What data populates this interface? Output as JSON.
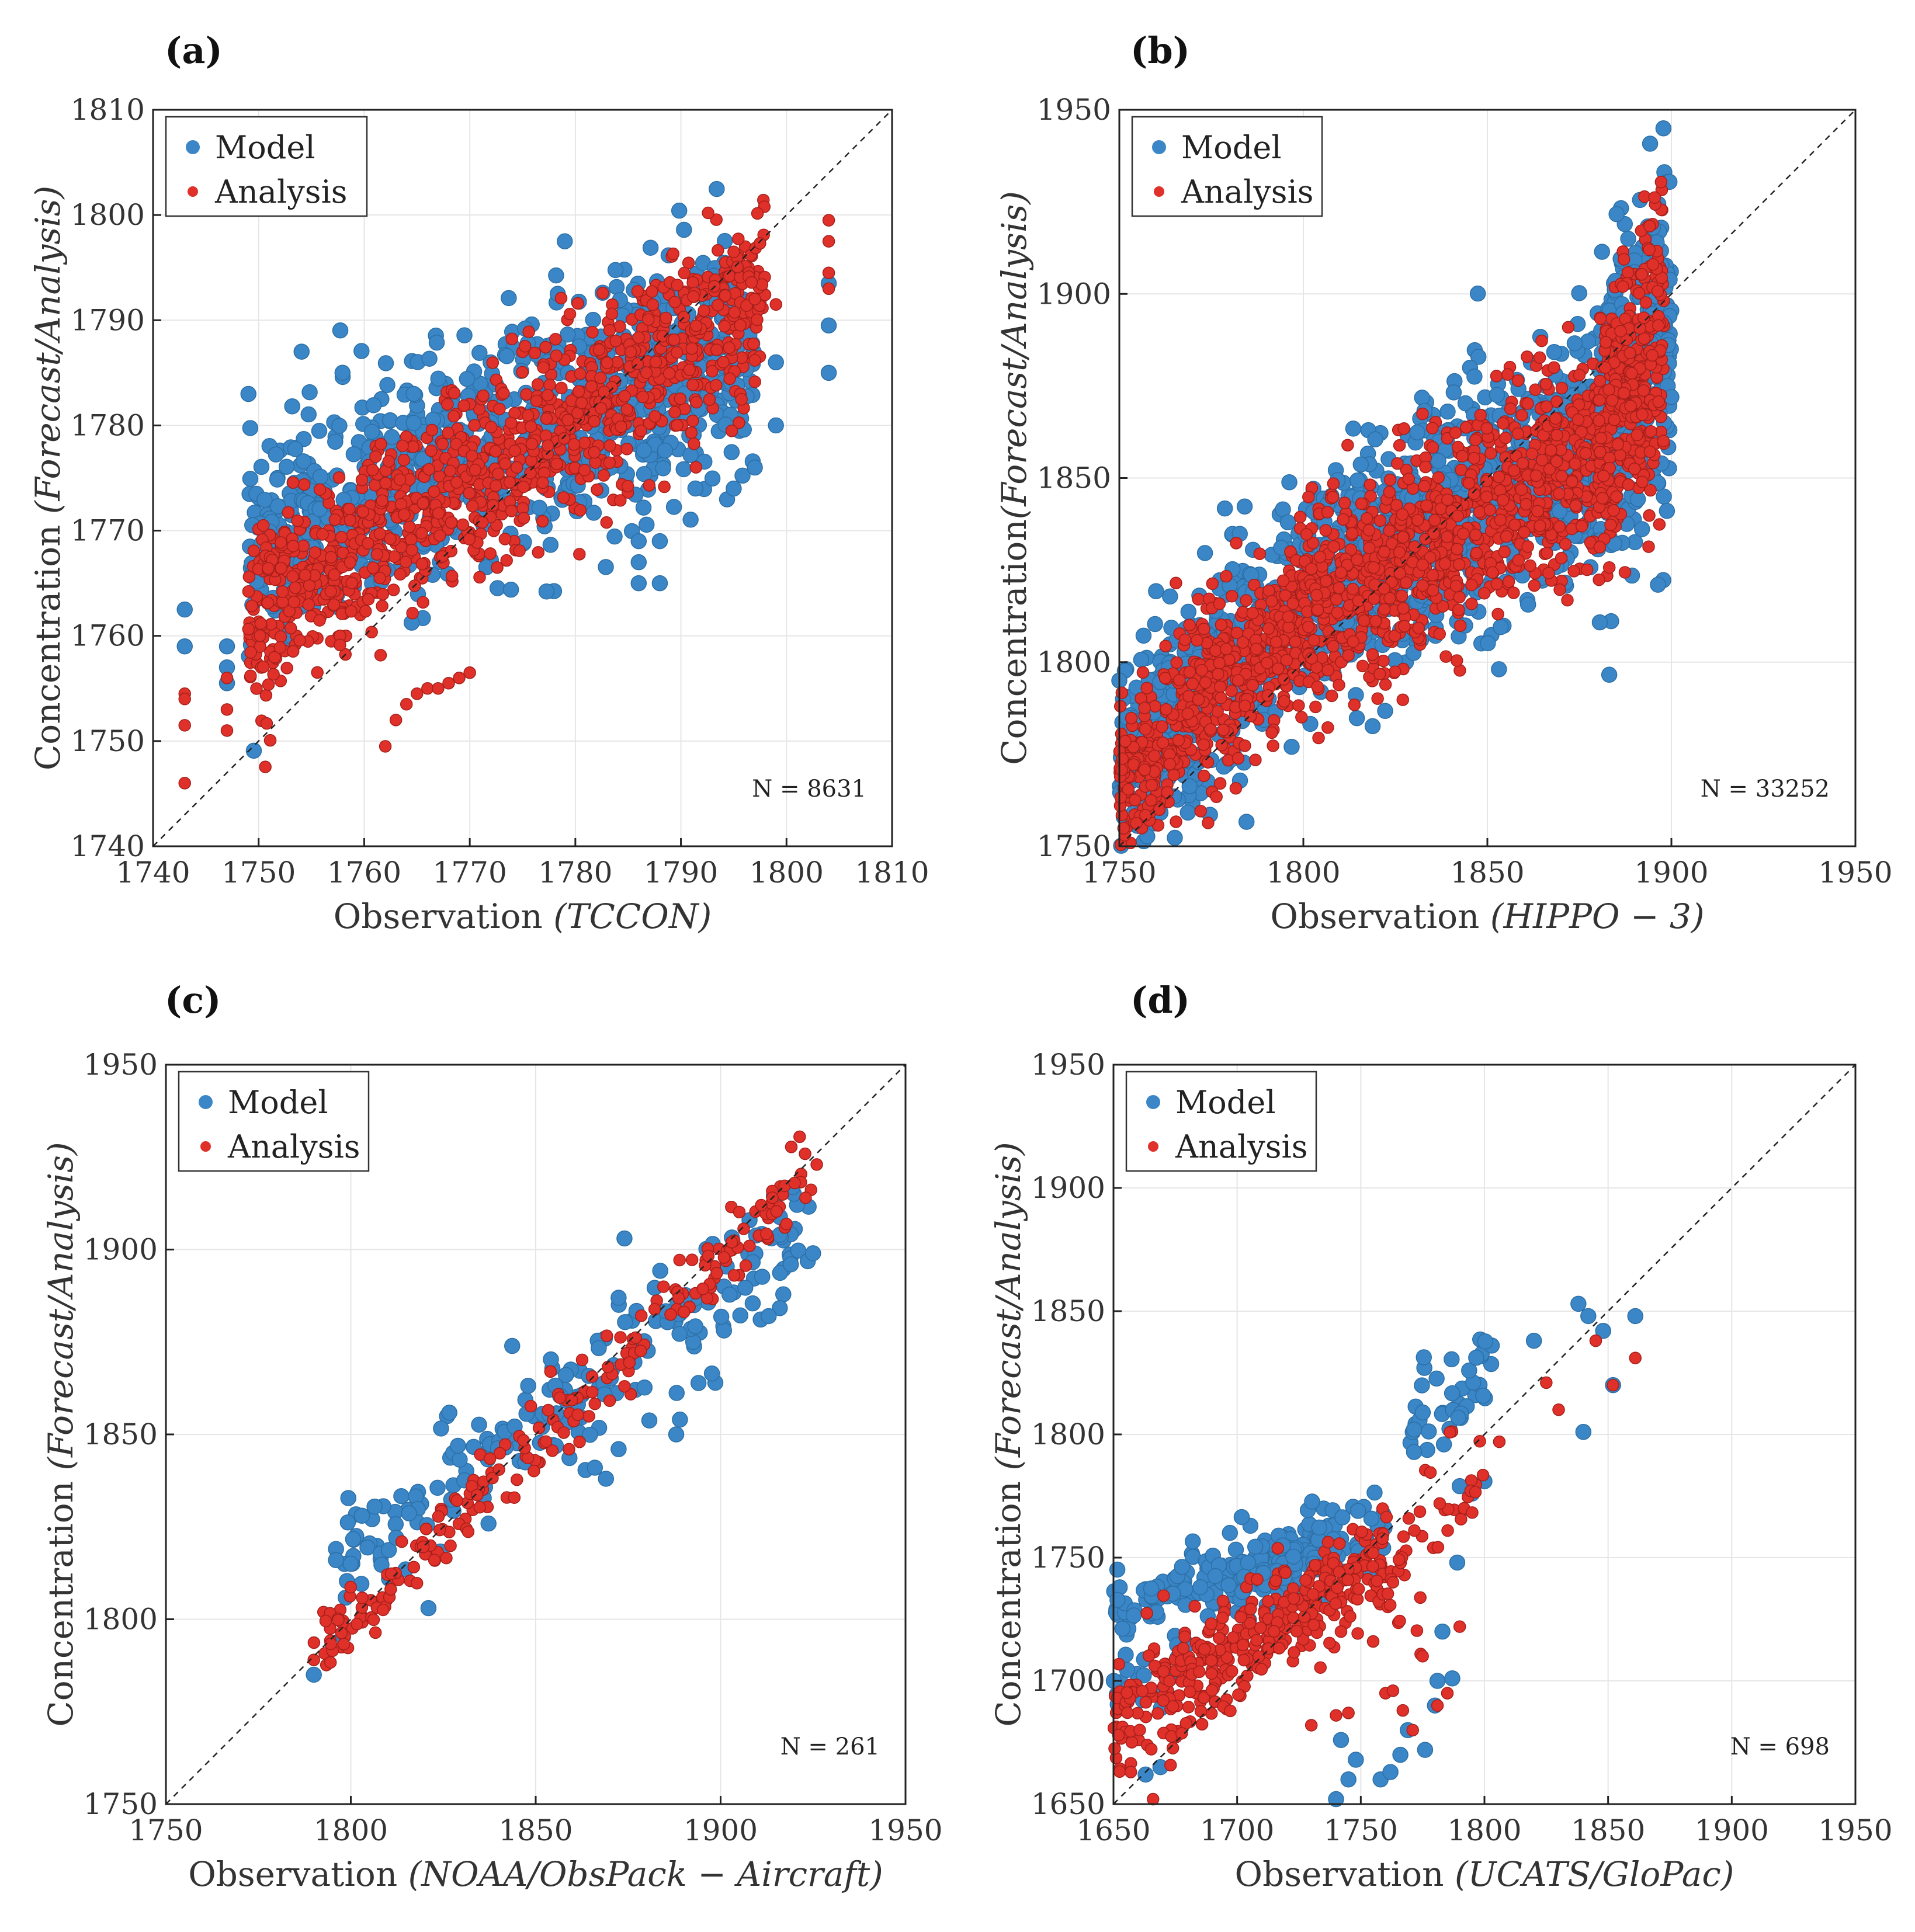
{
  "figure": {
    "model_color": "#3a86c6",
    "analysis_color": "#e0302a"
  },
  "chart_data": [
    {
      "type": "scatter",
      "panel": "(a)",
      "xlabel_prefix": "Observation ",
      "xlabel_italic": "(TCCON)",
      "ylabel_prefix": "Concentration ",
      "ylabel_italic": "(Forecast/Analysis)",
      "xlim": [
        1740,
        1810
      ],
      "ylim": [
        1740,
        1810
      ],
      "xticks": [
        1740,
        1750,
        1760,
        1770,
        1780,
        1790,
        1800,
        1810
      ],
      "yticks": [
        1740,
        1750,
        1760,
        1770,
        1780,
        1790,
        1800,
        1810
      ],
      "legend": [
        "Model",
        "Analysis"
      ],
      "n_label": "N = 8631",
      "series": [
        {
          "name": "Model",
          "color": "#3a86c6",
          "bands": [
            {
              "x": [
                1749,
                1797
              ],
              "y0": 1768,
              "slope": 0.42,
              "spread": 5.5,
              "count": 900
            }
          ],
          "points": [
            [
              1743,
              1762.5
            ],
            [
              1743,
              1759
            ],
            [
              1747,
              1759
            ],
            [
              1747,
              1757
            ],
            [
              1747,
              1755.5
            ],
            [
              1779,
              1797.5
            ],
            [
              1804,
              1793.5
            ],
            [
              1804,
              1789.5
            ],
            [
              1804,
              1785
            ],
            [
              1786,
              1769
            ],
            [
              1788,
              1769
            ],
            [
              1786,
              1767
            ],
            [
              1786,
              1765
            ],
            [
              1788,
              1765
            ],
            [
              1799,
              1780
            ],
            [
              1799,
              1786
            ],
            [
              1795,
              1774
            ],
            [
              1797,
              1776
            ]
          ]
        },
        {
          "name": "Analysis",
          "color": "#e0302a",
          "bands": [
            {
              "x": [
                1749,
                1798
              ],
              "y0": 1761.5,
              "slope": 0.62,
              "spread": 4.5,
              "count": 1100
            }
          ],
          "points": [
            [
              1743,
              1754.5
            ],
            [
              1743,
              1754
            ],
            [
              1743,
              1751.5
            ],
            [
              1743,
              1746
            ],
            [
              1747,
              1756
            ],
            [
              1747,
              1753
            ],
            [
              1747,
              1751
            ],
            [
              1762,
              1749.5
            ],
            [
              1763,
              1752
            ],
            [
              1764,
              1753.5
            ],
            [
              1765,
              1754.5
            ],
            [
              1766,
              1755
            ],
            [
              1767,
              1755
            ],
            [
              1768,
              1755.5
            ],
            [
              1769,
              1756
            ],
            [
              1770,
              1756.5
            ],
            [
              1804,
              1799.5
            ],
            [
              1804,
              1797.5
            ],
            [
              1804,
              1794.5
            ],
            [
              1804,
              1793
            ],
            [
              1795,
              1796.5
            ],
            [
              1797,
              1792
            ],
            [
              1799,
              1791.5
            ]
          ]
        }
      ]
    },
    {
      "type": "scatter",
      "panel": "(b)",
      "xlabel_prefix": "Observation ",
      "xlabel_italic": "(HIPPO − 3)",
      "ylabel_prefix": "Concentration",
      "ylabel_italic": "(Forecast/Analysis)",
      "xlim": [
        1750,
        1950
      ],
      "ylim": [
        1750,
        1950
      ],
      "xticks": [
        1750,
        1800,
        1850,
        1900,
        1950
      ],
      "yticks": [
        1750,
        1800,
        1850,
        1900,
        1950
      ],
      "legend": [
        "Model",
        "Analysis"
      ],
      "n_label": "N = 33252",
      "series": [
        {
          "name": "Model",
          "color": "#3a86c6",
          "bands": [
            {
              "x": [
                1750,
                1800
              ],
              "y0": 1772,
              "slope": 0.9,
              "spread": 14,
              "count": 500
            },
            {
              "x": [
                1800,
                1880
              ],
              "y0": 1817,
              "slope": 0.55,
              "spread": 16,
              "count": 800
            },
            {
              "x": [
                1880,
                1900
              ],
              "y0": 1860,
              "slope": 1.7,
              "spread": 22,
              "count": 350
            }
          ],
          "points": [
            [
              1750,
              1795
            ],
            [
              1751,
              1790
            ],
            [
              1752,
              1785
            ],
            [
              1895,
              1918
            ],
            [
              1896,
              1914
            ],
            [
              1899,
              1875
            ],
            [
              1900,
              1872
            ],
            [
              1898,
              1865
            ]
          ]
        },
        {
          "name": "Analysis",
          "color": "#e0302a",
          "bands": [
            {
              "x": [
                1750,
                1800
              ],
              "y0": 1768,
              "slope": 0.9,
              "spread": 12,
              "count": 550
            },
            {
              "x": [
                1800,
                1880
              ],
              "y0": 1813,
              "slope": 0.55,
              "spread": 14,
              "count": 900
            },
            {
              "x": [
                1880,
                1898
              ],
              "y0": 1858,
              "slope": 1.9,
              "spread": 18,
              "count": 350
            }
          ],
          "points": [
            [
              1894,
              1912
            ],
            [
              1895,
              1908
            ],
            [
              1882,
              1880
            ],
            [
              1875,
              1878
            ]
          ]
        }
      ]
    },
    {
      "type": "scatter",
      "panel": "(c)",
      "xlabel_prefix": "Observation ",
      "xlabel_italic": "(NOAA/ObsPack − Aircraft)",
      "ylabel_prefix": "Concentration ",
      "ylabel_italic": "(Forecast/Analysis)",
      "xlim": [
        1750,
        1950
      ],
      "ylim": [
        1750,
        1950
      ],
      "xticks": [
        1750,
        1800,
        1850,
        1900,
        1950
      ],
      "yticks": [
        1750,
        1800,
        1850,
        1900,
        1950
      ],
      "legend": [
        "Model",
        "Analysis"
      ],
      "n_label": "N = 261",
      "series": [
        {
          "name": "Model",
          "color": "#3a86c6",
          "bands": [
            {
              "x": [
                1797,
                1925
              ],
              "y0": 1818,
              "slope": 0.66,
              "spread": 9,
              "count": 200
            }
          ],
          "points": [
            [
              1790,
              1785
            ],
            [
              1796,
              1819
            ],
            [
              1796,
              1816
            ],
            [
              1800,
              1815
            ],
            [
              1803,
              1828
            ],
            [
              1821,
              1803
            ],
            [
              1874,
              1903
            ],
            [
              1925,
              1899
            ],
            [
              1919,
              1896
            ],
            [
              1916,
              1904
            ],
            [
              1913,
              1882
            ],
            [
              1888,
              1850
            ],
            [
              1889,
              1854
            ],
            [
              1869,
              1838
            ],
            [
              1866,
              1841
            ]
          ]
        },
        {
          "name": "Analysis",
          "color": "#e0302a",
          "bands": [
            {
              "x": [
                1790,
                1926
              ],
              "y0": 1790,
              "slope": 0.97,
              "spread": 5,
              "count": 220
            }
          ],
          "points": [
            [
              1790,
              1789
            ],
            [
              1926,
              1923
            ],
            [
              1920,
              1918
            ],
            [
              1914,
              1914
            ],
            [
              1911,
              1912
            ],
            [
              1903,
              1902
            ],
            [
              1854,
              1867
            ],
            [
              1859,
              1846
            ],
            [
              1874,
              1863
            ]
          ]
        }
      ]
    },
    {
      "type": "scatter",
      "panel": "(d)",
      "xlabel_prefix": "Observation ",
      "xlabel_italic": "(UCATS/GloPac)",
      "ylabel_prefix": "Concentration ",
      "ylabel_italic": "(Forecast/Analysis)",
      "xlim": [
        1650,
        1950
      ],
      "ylim": [
        1650,
        1950
      ],
      "xticks": [
        1650,
        1700,
        1750,
        1800,
        1850,
        1900,
        1950
      ],
      "yticks": [
        1650,
        1700,
        1750,
        1800,
        1850,
        1900,
        1950
      ],
      "legend": [
        "Model",
        "Analysis"
      ],
      "n_label": "N = 698",
      "series": [
        {
          "name": "Model",
          "color": "#3a86c6",
          "bands": [
            {
              "x": [
                1650,
                1740
              ],
              "y0": 1728,
              "slope": 0.35,
              "spread": 7,
              "count": 160
            },
            {
              "x": [
                1700,
                1760
              ],
              "y0": 1736,
              "slope": 0.4,
              "spread": 10,
              "count": 70
            },
            {
              "x": [
                1650,
                1680
              ],
              "y0": 1698,
              "slope": 0.4,
              "spread": 6,
              "count": 25
            },
            {
              "x": [
                1770,
                1805
              ],
              "y0": 1805,
              "slope": 0.6,
              "spread": 10,
              "count": 40
            }
          ],
          "points": [
            [
              1740,
              1652
            ],
            [
              1745,
              1660
            ],
            [
              1748,
              1668
            ],
            [
              1742,
              1676
            ],
            [
              1758,
              1660
            ],
            [
              1762,
              1663
            ],
            [
              1766,
              1670
            ],
            [
              1769,
              1680
            ],
            [
              1776,
              1672
            ],
            [
              1780,
              1690
            ],
            [
              1787,
              1701
            ],
            [
              1781,
              1700
            ],
            [
              1783,
              1720
            ],
            [
              1789,
              1748
            ],
            [
              1820,
              1838
            ],
            [
              1838,
              1853
            ],
            [
              1842,
              1848
            ],
            [
              1848,
              1842
            ],
            [
              1852,
              1820
            ],
            [
              1861,
              1848
            ],
            [
              1840,
              1801
            ],
            [
              1795,
              1776
            ],
            [
              1800,
              1781
            ],
            [
              1663,
              1662
            ],
            [
              1669,
              1665
            ],
            [
              1656,
              1697
            ],
            [
              1790,
              1779
            ]
          ]
        },
        {
          "name": "Analysis",
          "color": "#e0302a",
          "bands": [
            {
              "x": [
                1650,
                1760
              ],
              "y0": 1683,
              "slope": 0.6,
              "spread": 11,
              "count": 380
            },
            {
              "x": [
                1760,
                1800
              ],
              "y0": 1740,
              "slope": 1.3,
              "spread": 14,
              "count": 45
            }
          ],
          "points": [
            [
              1666,
              1652
            ],
            [
              1657,
              1663
            ],
            [
              1652,
              1678
            ],
            [
              1730,
              1682
            ],
            [
              1740,
              1686
            ],
            [
              1745,
              1687
            ],
            [
              1760,
              1695
            ],
            [
              1763,
              1696
            ],
            [
              1767,
              1688
            ],
            [
              1771,
              1680
            ],
            [
              1781,
              1690
            ],
            [
              1785,
              1695
            ],
            [
              1775,
              1710
            ],
            [
              1790,
              1722
            ],
            [
              1806,
              1797
            ],
            [
              1825,
              1821
            ],
            [
              1830,
              1810
            ],
            [
              1845,
              1838
            ],
            [
              1852,
              1820
            ],
            [
              1861,
              1831
            ],
            [
              1742,
              1720
            ],
            [
              1755,
              1716
            ],
            [
              1763,
              1740
            ]
          ]
        }
      ]
    }
  ]
}
